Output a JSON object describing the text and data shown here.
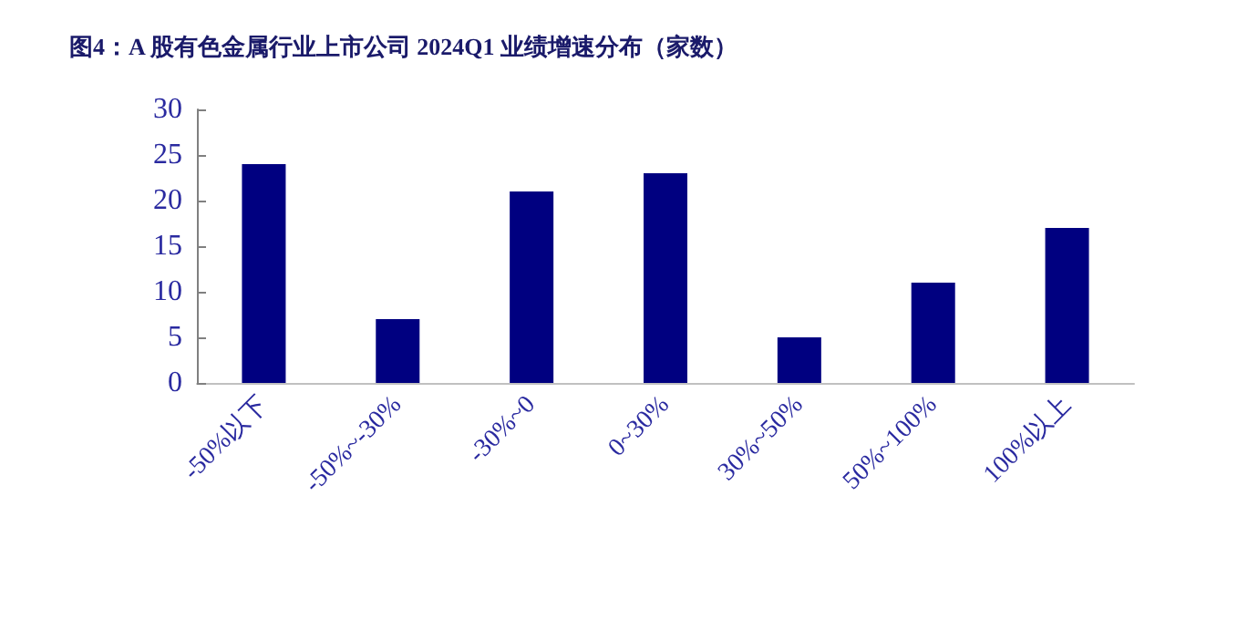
{
  "chart_data": {
    "type": "bar",
    "title": "图4：A 股有色金属行业上市公司 2024Q1 业绩增速分布（家数）",
    "categories": [
      "-50%以下",
      "-50%~-30%",
      "-30%~0",
      "0~30%",
      "30%~50%",
      "50%~100%",
      "100%以上"
    ],
    "values": [
      24,
      7,
      21,
      23,
      5,
      11,
      17
    ],
    "color": "#000080",
    "ylim": [
      0,
      30
    ],
    "yticks": [
      0,
      5,
      10,
      15,
      20,
      25,
      30
    ],
    "grid": false
  }
}
